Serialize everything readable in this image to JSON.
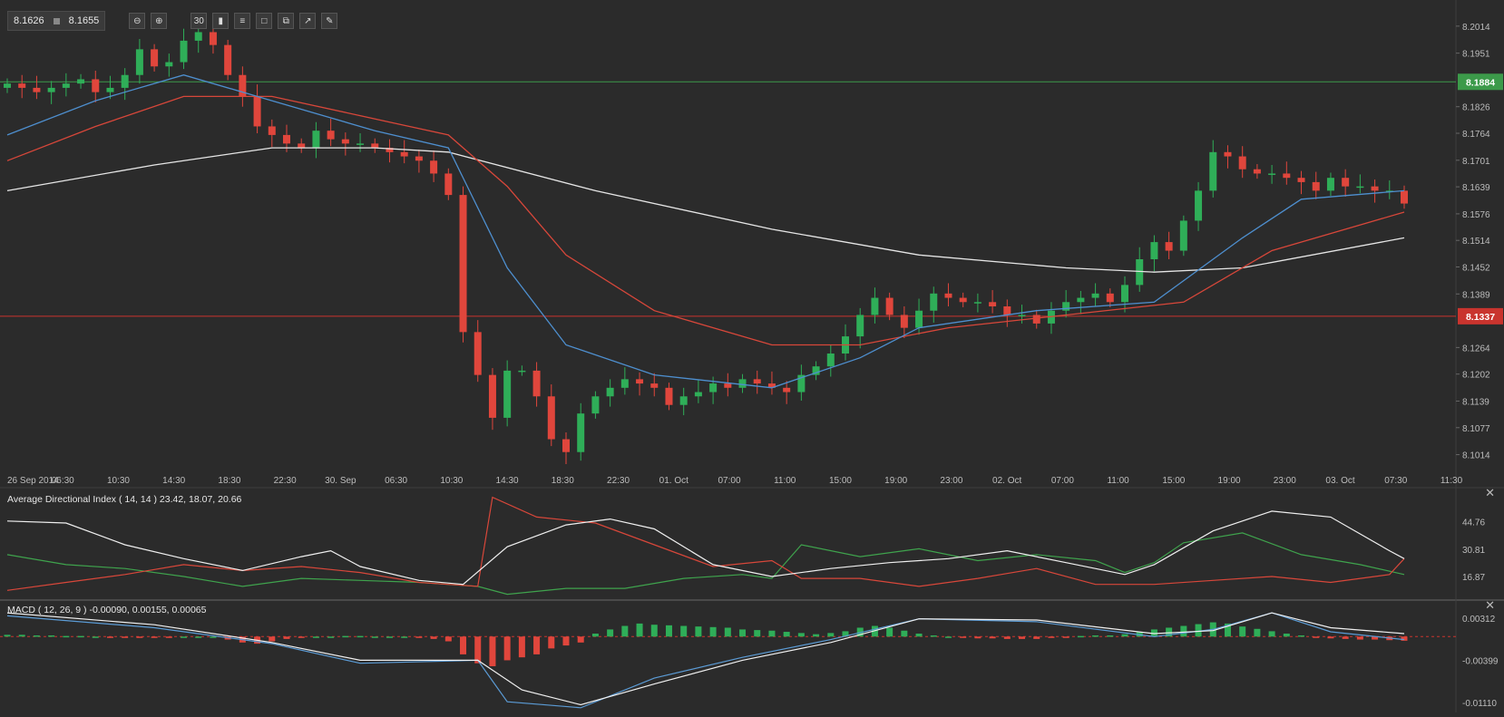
{
  "toolbar": {
    "bid": "8.1626",
    "ask": "8.1655",
    "timeframe_label": "30",
    "buttons": [
      "zoom-out-icon",
      "zoom-in-icon",
      "timeframe-button",
      "candles-icon",
      "indicators-icon",
      "chart-type-icon",
      "snapshot-icon",
      "draw-icon",
      "pencil-icon"
    ]
  },
  "colors": {
    "background": "#2b2b2b",
    "grid": "#333333",
    "up": "#2fae58",
    "down": "#e0463c",
    "ma_blue": "#4e8fcf",
    "ma_red": "#d8473a",
    "ma_white": "#e6e6e6",
    "adx_white": "#f0f0f0",
    "adx_red": "#d8473a",
    "adx_green": "#3fa34d",
    "macd_white": "#f0f0f0",
    "macd_blue": "#5b9bd5",
    "resistance": "#3c9a4a",
    "support": "#c9342e"
  },
  "chart_data": [
    {
      "type": "candlestick",
      "ylim": [
        8.0975,
        8.2075
      ],
      "y_ticks": [
        "8.2014",
        "8.1951",
        "8.1826",
        "8.1764",
        "8.1701",
        "8.1639",
        "8.1576",
        "8.1514",
        "8.1452",
        "8.1389",
        "8.1264",
        "8.1202",
        "8.1139",
        "8.1077",
        "8.1014"
      ],
      "x_ticks": [
        "26 Sep 2014",
        "06:30",
        "10:30",
        "14:30",
        "18:30",
        "22:30",
        "30. Sep",
        "06:30",
        "10:30",
        "14:30",
        "18:30",
        "22:30",
        "01. Oct",
        "07:00",
        "11:00",
        "15:00",
        "19:00",
        "23:00",
        "02. Oct",
        "07:00",
        "11:00",
        "15:00",
        "19:00",
        "23:00",
        "03. Oct",
        "07:30",
        "11:30"
      ],
      "resistance_level": 8.1884,
      "resistance_label": "8.1884",
      "support_level": 8.1337,
      "support_label": "8.1337",
      "close_path": [
        8.188,
        8.187,
        8.186,
        8.187,
        8.188,
        8.189,
        8.186,
        8.187,
        8.19,
        8.196,
        8.192,
        8.193,
        8.198,
        8.2,
        8.197,
        8.19,
        8.185,
        8.178,
        8.176,
        8.174,
        8.173,
        8.177,
        8.175,
        8.174,
        8.174,
        8.173,
        8.172,
        8.171,
        8.17,
        8.167,
        8.162,
        8.13,
        8.12,
        8.11,
        8.121,
        8.121,
        8.115,
        8.105,
        8.102,
        8.111,
        8.115,
        8.117,
        8.119,
        8.118,
        8.117,
        8.113,
        8.115,
        8.116,
        8.118,
        8.117,
        8.119,
        8.118,
        8.117,
        8.116,
        8.12,
        8.122,
        8.125,
        8.129,
        8.134,
        8.138,
        8.134,
        8.131,
        8.135,
        8.139,
        8.138,
        8.137,
        8.137,
        8.136,
        8.134,
        8.134,
        8.132,
        8.135,
        8.137,
        8.138,
        8.139,
        8.137,
        8.141,
        8.147,
        8.151,
        8.149,
        8.156,
        8.163,
        8.172,
        8.171,
        8.168,
        8.167,
        8.167,
        8.166,
        8.165,
        8.163,
        8.166,
        8.164,
        8.164,
        8.163,
        8.163,
        8.16
      ],
      "ma_blue": [
        [
          0,
          8.176
        ],
        [
          6,
          8.184
        ],
        [
          12,
          8.19
        ],
        [
          18,
          8.184
        ],
        [
          25,
          8.177
        ],
        [
          30,
          8.173
        ],
        [
          34,
          8.145
        ],
        [
          38,
          8.127
        ],
        [
          44,
          8.12
        ],
        [
          52,
          8.117
        ],
        [
          58,
          8.124
        ],
        [
          62,
          8.131
        ],
        [
          70,
          8.135
        ],
        [
          78,
          8.137
        ],
        [
          84,
          8.152
        ],
        [
          88,
          8.161
        ],
        [
          95,
          8.163
        ]
      ],
      "ma_red": [
        [
          0,
          8.17
        ],
        [
          6,
          8.178
        ],
        [
          12,
          8.185
        ],
        [
          18,
          8.185
        ],
        [
          26,
          8.179
        ],
        [
          30,
          8.176
        ],
        [
          34,
          8.164
        ],
        [
          38,
          8.148
        ],
        [
          44,
          8.135
        ],
        [
          52,
          8.127
        ],
        [
          58,
          8.127
        ],
        [
          64,
          8.131
        ],
        [
          72,
          8.134
        ],
        [
          80,
          8.137
        ],
        [
          86,
          8.149
        ],
        [
          95,
          8.158
        ]
      ],
      "ma_white": [
        [
          0,
          8.163
        ],
        [
          10,
          8.169
        ],
        [
          18,
          8.173
        ],
        [
          25,
          8.173
        ],
        [
          30,
          8.172
        ],
        [
          40,
          8.163
        ],
        [
          52,
          8.154
        ],
        [
          62,
          8.148
        ],
        [
          72,
          8.145
        ],
        [
          78,
          8.144
        ],
        [
          84,
          8.145
        ],
        [
          95,
          8.152
        ]
      ]
    },
    {
      "type": "line",
      "title": "Average Directional Index ( 14, 14 ) 23.42, 18.07, 20.66",
      "y_ticks": [
        "44.76",
        "30.81",
        "16.87"
      ],
      "ylim": [
        6,
        60
      ],
      "adx_white": [
        [
          0,
          45
        ],
        [
          4,
          44
        ],
        [
          8,
          33
        ],
        [
          12,
          26
        ],
        [
          16,
          20
        ],
        [
          20,
          27
        ],
        [
          22,
          30
        ],
        [
          24,
          22
        ],
        [
          28,
          15
        ],
        [
          31,
          13
        ],
        [
          34,
          32
        ],
        [
          38,
          43
        ],
        [
          41,
          46
        ],
        [
          44,
          41
        ],
        [
          48,
          23
        ],
        [
          52,
          17
        ],
        [
          56,
          21
        ],
        [
          60,
          24
        ],
        [
          64,
          26
        ],
        [
          68,
          30
        ],
        [
          72,
          24
        ],
        [
          76,
          18
        ],
        [
          78,
          23
        ],
        [
          82,
          40
        ],
        [
          86,
          50
        ],
        [
          90,
          47
        ],
        [
          94,
          30
        ],
        [
          95,
          26
        ]
      ],
      "adx_red": [
        [
          0,
          10
        ],
        [
          4,
          14
        ],
        [
          8,
          18
        ],
        [
          12,
          23
        ],
        [
          16,
          20
        ],
        [
          20,
          22
        ],
        [
          24,
          19
        ],
        [
          28,
          14
        ],
        [
          32,
          12
        ],
        [
          33,
          57
        ],
        [
          36,
          47
        ],
        [
          40,
          44
        ],
        [
          44,
          33
        ],
        [
          48,
          22
        ],
        [
          52,
          25
        ],
        [
          54,
          16
        ],
        [
          58,
          16
        ],
        [
          62,
          12
        ],
        [
          66,
          16
        ],
        [
          70,
          21
        ],
        [
          74,
          13
        ],
        [
          78,
          13
        ],
        [
          82,
          15
        ],
        [
          86,
          17
        ],
        [
          90,
          14
        ],
        [
          94,
          18
        ],
        [
          95,
          26
        ]
      ],
      "adx_green": [
        [
          0,
          28
        ],
        [
          4,
          23
        ],
        [
          8,
          21
        ],
        [
          12,
          17
        ],
        [
          16,
          12
        ],
        [
          20,
          16
        ],
        [
          24,
          15
        ],
        [
          28,
          14
        ],
        [
          32,
          12
        ],
        [
          34,
          8
        ],
        [
          38,
          11
        ],
        [
          42,
          11
        ],
        [
          46,
          16
        ],
        [
          50,
          18
        ],
        [
          52,
          16
        ],
        [
          54,
          33
        ],
        [
          58,
          27
        ],
        [
          62,
          31
        ],
        [
          66,
          25
        ],
        [
          70,
          28
        ],
        [
          74,
          25
        ],
        [
          76,
          19
        ],
        [
          78,
          24
        ],
        [
          80,
          34
        ],
        [
          84,
          39
        ],
        [
          88,
          28
        ],
        [
          92,
          23
        ],
        [
          95,
          18
        ]
      ]
    },
    {
      "type": "line",
      "title": "MACD ( 12, 26, 9 ) -0.00090, 0.00155, 0.00065",
      "y_ticks": [
        "0.00312",
        "-0.00399",
        "-0.01110"
      ],
      "ylim": [
        -0.0128,
        0.0057
      ],
      "macd_white": [
        [
          0,
          0.004
        ],
        [
          10,
          0.002
        ],
        [
          18,
          -0.001
        ],
        [
          24,
          -0.004
        ],
        [
          32,
          -0.004
        ],
        [
          35,
          -0.009
        ],
        [
          39,
          -0.0115
        ],
        [
          44,
          -0.008
        ],
        [
          50,
          -0.004
        ],
        [
          56,
          -0.001
        ],
        [
          62,
          0.003
        ],
        [
          70,
          0.0028
        ],
        [
          78,
          0.0005
        ],
        [
          82,
          0.001
        ],
        [
          86,
          0.004
        ],
        [
          90,
          0.0015
        ],
        [
          95,
          0.0005
        ]
      ],
      "macd_blue": [
        [
          0,
          0.0035
        ],
        [
          10,
          0.0015
        ],
        [
          18,
          -0.0012
        ],
        [
          24,
          -0.0045
        ],
        [
          32,
          -0.004
        ],
        [
          34,
          -0.011
        ],
        [
          39,
          -0.012
        ],
        [
          44,
          -0.007
        ],
        [
          50,
          -0.0035
        ],
        [
          56,
          -0.0005
        ],
        [
          62,
          0.003
        ],
        [
          70,
          0.0025
        ],
        [
          78,
          0.0
        ],
        [
          82,
          0.0012
        ],
        [
          86,
          0.004
        ],
        [
          90,
          0.0008
        ],
        [
          95,
          -0.0005
        ]
      ],
      "histogram": [
        0.0003,
        0.0003,
        0.0002,
        0.0002,
        0.0001,
        0.0001,
        0.0,
        -0.0001,
        -0.0001,
        -0.0002,
        -0.0002,
        -0.0001,
        0.0,
        0.0,
        0.0,
        -0.0005,
        -0.001,
        -0.0012,
        -0.0008,
        -0.0004,
        -0.0002,
        0.0,
        0.0,
        0.0001,
        0.0001,
        0.0,
        0.0,
        0.0,
        -0.0002,
        -0.0004,
        -0.0008,
        -0.003,
        -0.0045,
        -0.005,
        -0.004,
        -0.0035,
        -0.003,
        -0.002,
        -0.0015,
        -0.001,
        0.0005,
        0.0012,
        0.0018,
        0.0022,
        0.002,
        0.0019,
        0.0018,
        0.0017,
        0.0016,
        0.0015,
        0.0012,
        0.0011,
        0.001,
        0.0008,
        0.0006,
        0.0004,
        0.0006,
        0.0009,
        0.0015,
        0.0018,
        0.0015,
        0.001,
        0.0005,
        0.0002,
        0.0,
        -0.0002,
        -0.0003,
        -0.0003,
        -0.0004,
        -0.0004,
        -0.0004,
        -0.0002,
        -0.0001,
        0.0001,
        0.0002,
        0.0002,
        0.0004,
        0.0008,
        0.0012,
        0.0015,
        0.0018,
        0.0021,
        0.0024,
        0.0022,
        0.0017,
        0.0013,
        0.0009,
        0.0005,
        0.0002,
        -0.0001,
        -0.0003,
        -0.0004,
        -0.0005,
        -0.0005,
        -0.0006,
        -0.0007
      ]
    }
  ]
}
